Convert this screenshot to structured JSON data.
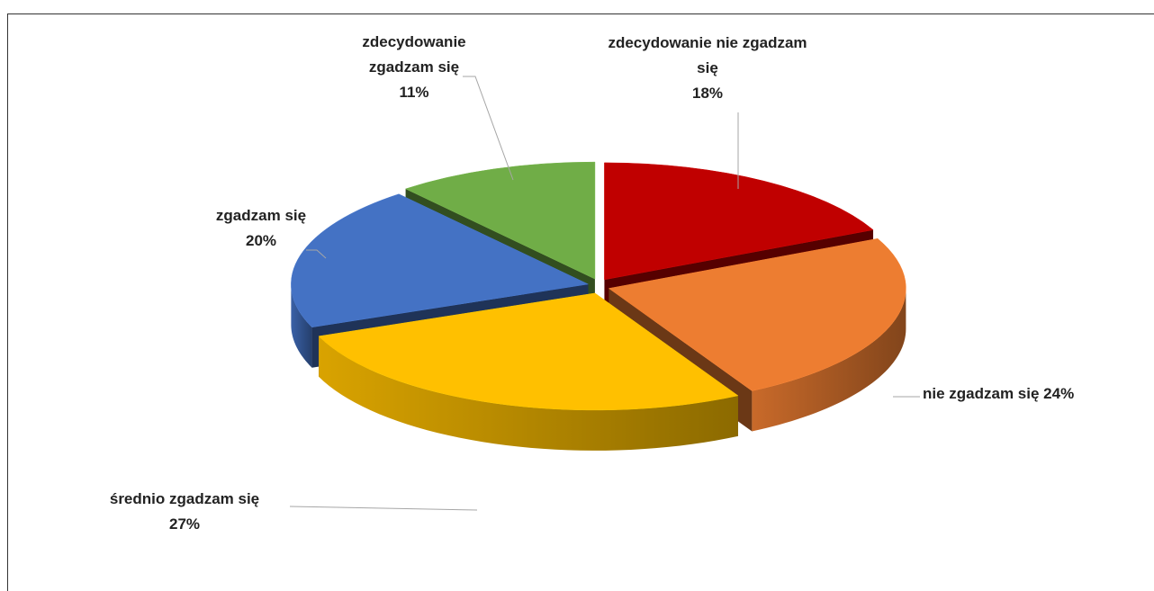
{
  "chart_data": {
    "type": "pie",
    "categories": [
      "zdecydowanie nie zgadzam się",
      "nie zgadzam się",
      "średnio zgadzam się",
      "zgadzam się",
      "zdecydowanie zgadzam się"
    ],
    "values": [
      18,
      24,
      27,
      20,
      11
    ],
    "value_labels": [
      "18%",
      "24%",
      "27%",
      "20%",
      "11%"
    ],
    "colors": [
      "#c00000",
      "#ed7d31",
      "#ffc000",
      "#4472c4",
      "#70ad47"
    ]
  }
}
